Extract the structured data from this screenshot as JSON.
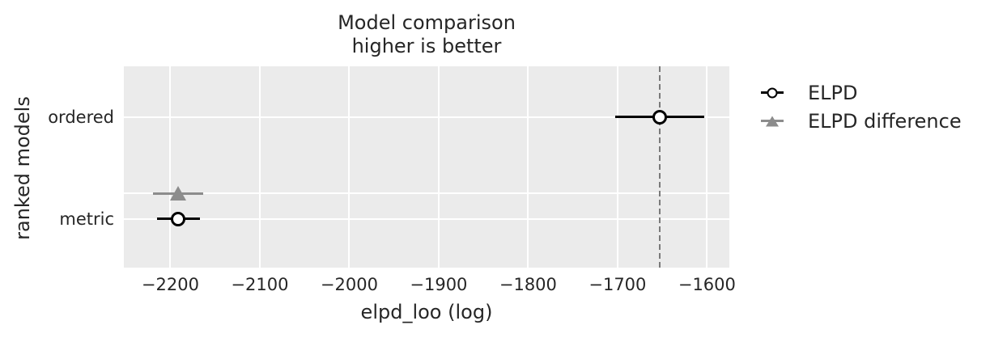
{
  "figure": {
    "background": "#ffffff",
    "text_color": "#262626"
  },
  "panel": {
    "background": "#ebebeb",
    "grid_color": "#ffffff"
  },
  "chart_data": {
    "type": "scatter",
    "title_lines": [
      "Model comparison",
      "higher is better"
    ],
    "xlabel": "elpd_loo (log)",
    "ylabel": "ranked models",
    "xlim": [
      -2252,
      -1575
    ],
    "ylim": [
      -0.48,
      1.5
    ],
    "grid": true,
    "legend_position": "outside-right",
    "xticks": [
      {
        "value": -2200,
        "label": "−2200"
      },
      {
        "value": -2100,
        "label": "−2100"
      },
      {
        "value": -2000,
        "label": "−2000"
      },
      {
        "value": -1900,
        "label": "−1900"
      },
      {
        "value": -1800,
        "label": "−1800"
      },
      {
        "value": -1700,
        "label": "−1700"
      },
      {
        "value": -1600,
        "label": "−1600"
      }
    ],
    "yticks": [
      {
        "y": 1,
        "label": "ordered"
      },
      {
        "y": 0,
        "label": "metric"
      }
    ],
    "grid_y": [
      1,
      0.25,
      0
    ],
    "series": [
      {
        "name": "ELPD",
        "marker": "circle",
        "marker_fill": "#ffffff",
        "marker_edge": "#000000",
        "line_color": "#000000",
        "points": [
          {
            "model": "ordered",
            "y": 1,
            "elpd": -1653,
            "se": 50
          },
          {
            "model": "metric",
            "y": 0,
            "elpd": -2191,
            "se": 24
          }
        ]
      },
      {
        "name": "ELPD difference",
        "marker": "triangle",
        "marker_fill": "#8c8c8c",
        "marker_edge": "#8c8c8c",
        "line_color": "#8c8c8c",
        "points": [
          {
            "model": "metric",
            "y": 0.25,
            "elpd": -2191,
            "se": 28
          }
        ]
      }
    ],
    "vline": {
      "x": -1653,
      "color": "#7a7a7a",
      "style": "dashed"
    }
  }
}
